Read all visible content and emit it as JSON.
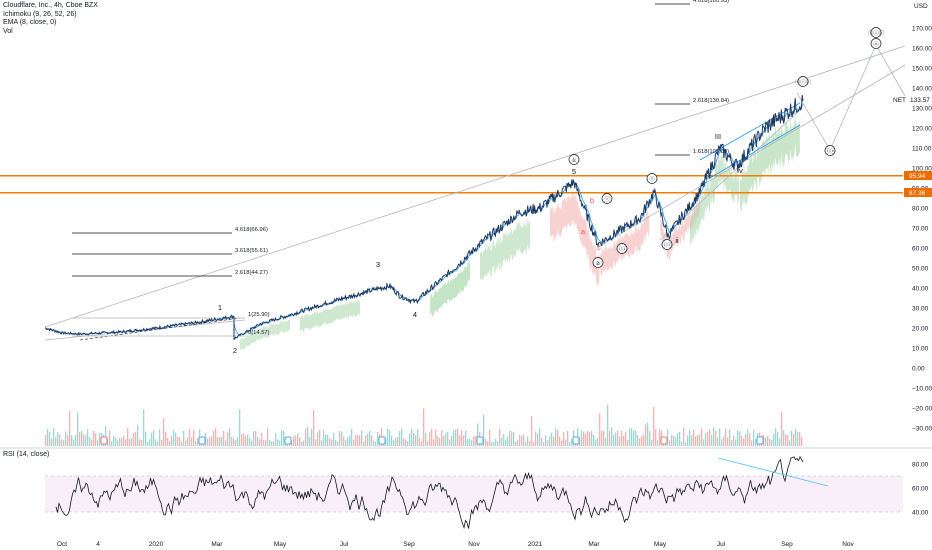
{
  "header": {
    "symbol_line": "Cloudflare, Inc., 4h, Cboe BZX",
    "ichimoku": "Ichimoku (9, 26, 52, 26)",
    "ema": "EMA (8, close, 0)",
    "vol": "Vol"
  },
  "rsi_label": "RSI (14, close)",
  "colors": {
    "price_line": "#1e3a5f",
    "channel_line": "#2196f3",
    "trend_line": "#b2b5be",
    "level_band": "#f57c00",
    "level_badge": "#ef6c00",
    "current_badge": "#131722",
    "volume_up": "#26a69a",
    "volume_down": "#ef5350",
    "cloud_green": "#a5d6a7",
    "cloud_red": "#ef9a9a",
    "ema": "#2196f3",
    "rsi_line": "#131722",
    "rsi_trend": "#4fc3f7",
    "rsi_band": "#f3e5f5"
  },
  "chart_data": {
    "type": "line",
    "title": "Cloudflare, Inc., 4h, Cboe BZX",
    "y_axis_unit": "USD",
    "y_axis_ticks": [
      "170.00",
      "160.00",
      "150.00",
      "140.00",
      "130.00",
      "120.00",
      "110.00",
      "100.00",
      "90.00",
      "80.00",
      "70.00",
      "60.00",
      "50.00",
      "40.00",
      "30.00",
      "20.00",
      "10.00",
      "0.00",
      "−10.00",
      "−20.00",
      "−30.00"
    ],
    "x_axis_ticks": [
      "Oct",
      "4",
      "2020",
      "Mar",
      "May",
      "Jul",
      "Sep",
      "Nov",
      "2021",
      "Mar",
      "May",
      "Jul",
      "Sep",
      "Nov"
    ],
    "price_axis_labels": {
      "current_price": "133.57",
      "current_price_badge": "130.00",
      "ticker_marker": "NET",
      "level_upper": "95.94",
      "level_lower": "87.36"
    },
    "price_series": [
      {
        "x": "Sep 2019",
        "y": 20.0
      },
      {
        "x": "Oct 2019",
        "y": 17.5
      },
      {
        "x": "Nov 2019",
        "y": 17.0
      },
      {
        "x": "Dec 2019",
        "y": 18.0
      },
      {
        "x": "Jan 2020",
        "y": 20.0
      },
      {
        "x": "Feb 2020",
        "y": 23.0
      },
      {
        "x": "Feb 2020",
        "y": 25.9
      },
      {
        "x": "Mar 2020",
        "y": 14.6
      },
      {
        "x": "Apr 2020",
        "y": 22.0
      },
      {
        "x": "May 2020",
        "y": 25.0
      },
      {
        "x": "Jun 2020",
        "y": 33.0
      },
      {
        "x": "Jul 2020",
        "y": 40.0
      },
      {
        "x": "Aug 2020",
        "y": 41.0
      },
      {
        "x": "Aug 2020",
        "y": 36.0
      },
      {
        "x": "Sep 2020",
        "y": 33.0
      },
      {
        "x": "Oct 2020",
        "y": 48.0
      },
      {
        "x": "Nov 2020",
        "y": 62.0
      },
      {
        "x": "Dec 2020",
        "y": 78.0
      },
      {
        "x": "Jan 2021",
        "y": 80.0
      },
      {
        "x": "Feb 2021",
        "y": 93.0
      },
      {
        "x": "Mar 2021",
        "y": 62.0
      },
      {
        "x": "Apr 2021",
        "y": 75.0
      },
      {
        "x": "Apr 2021",
        "y": 88.0
      },
      {
        "x": "May 2021",
        "y": 66.0
      },
      {
        "x": "Jun 2021",
        "y": 88.0
      },
      {
        "x": "Jul 2021",
        "y": 110.0
      },
      {
        "x": "Jul 2021",
        "y": 101.0
      },
      {
        "x": "Aug 2021",
        "y": 120.0
      },
      {
        "x": "Sep 2021",
        "y": 133.57
      }
    ],
    "fib_levels": [
      {
        "label": "4.618(66.96)",
        "value": 66.96
      },
      {
        "label": "3.618(55.61)",
        "value": 55.61
      },
      {
        "label": "2.618(44.27)",
        "value": 44.27
      },
      {
        "label": "1(25.90)",
        "value": 25.9
      },
      {
        "label": "0(14.57)",
        "value": 14.57
      },
      {
        "label": "4.618(180.93)",
        "value": 180.93
      },
      {
        "label": "2.618(130.84)",
        "value": 130.84
      },
      {
        "label": "1.618(105.80)",
        "value": 105.8
      }
    ],
    "wave_labels": [
      "1",
      "2",
      "3",
      "4",
      "5",
      "①",
      "②",
      "a",
      "b",
      "c",
      "Ⓘ",
      "ⓘ",
      "ⓘⓘ",
      "ⓘⓘ",
      "ii",
      "III",
      "iv",
      "ⓘⓘⓘ",
      "ⓥ",
      "Ⓘⓘⓘ",
      "ⓘⓥ"
    ],
    "rsi": {
      "label": "RSI (14, close)",
      "y_ticks": [
        "80.00",
        "60.00",
        "40.00"
      ],
      "ylim": [
        20,
        90
      ]
    },
    "ylim": [
      -35,
      180
    ],
    "grid": false
  }
}
